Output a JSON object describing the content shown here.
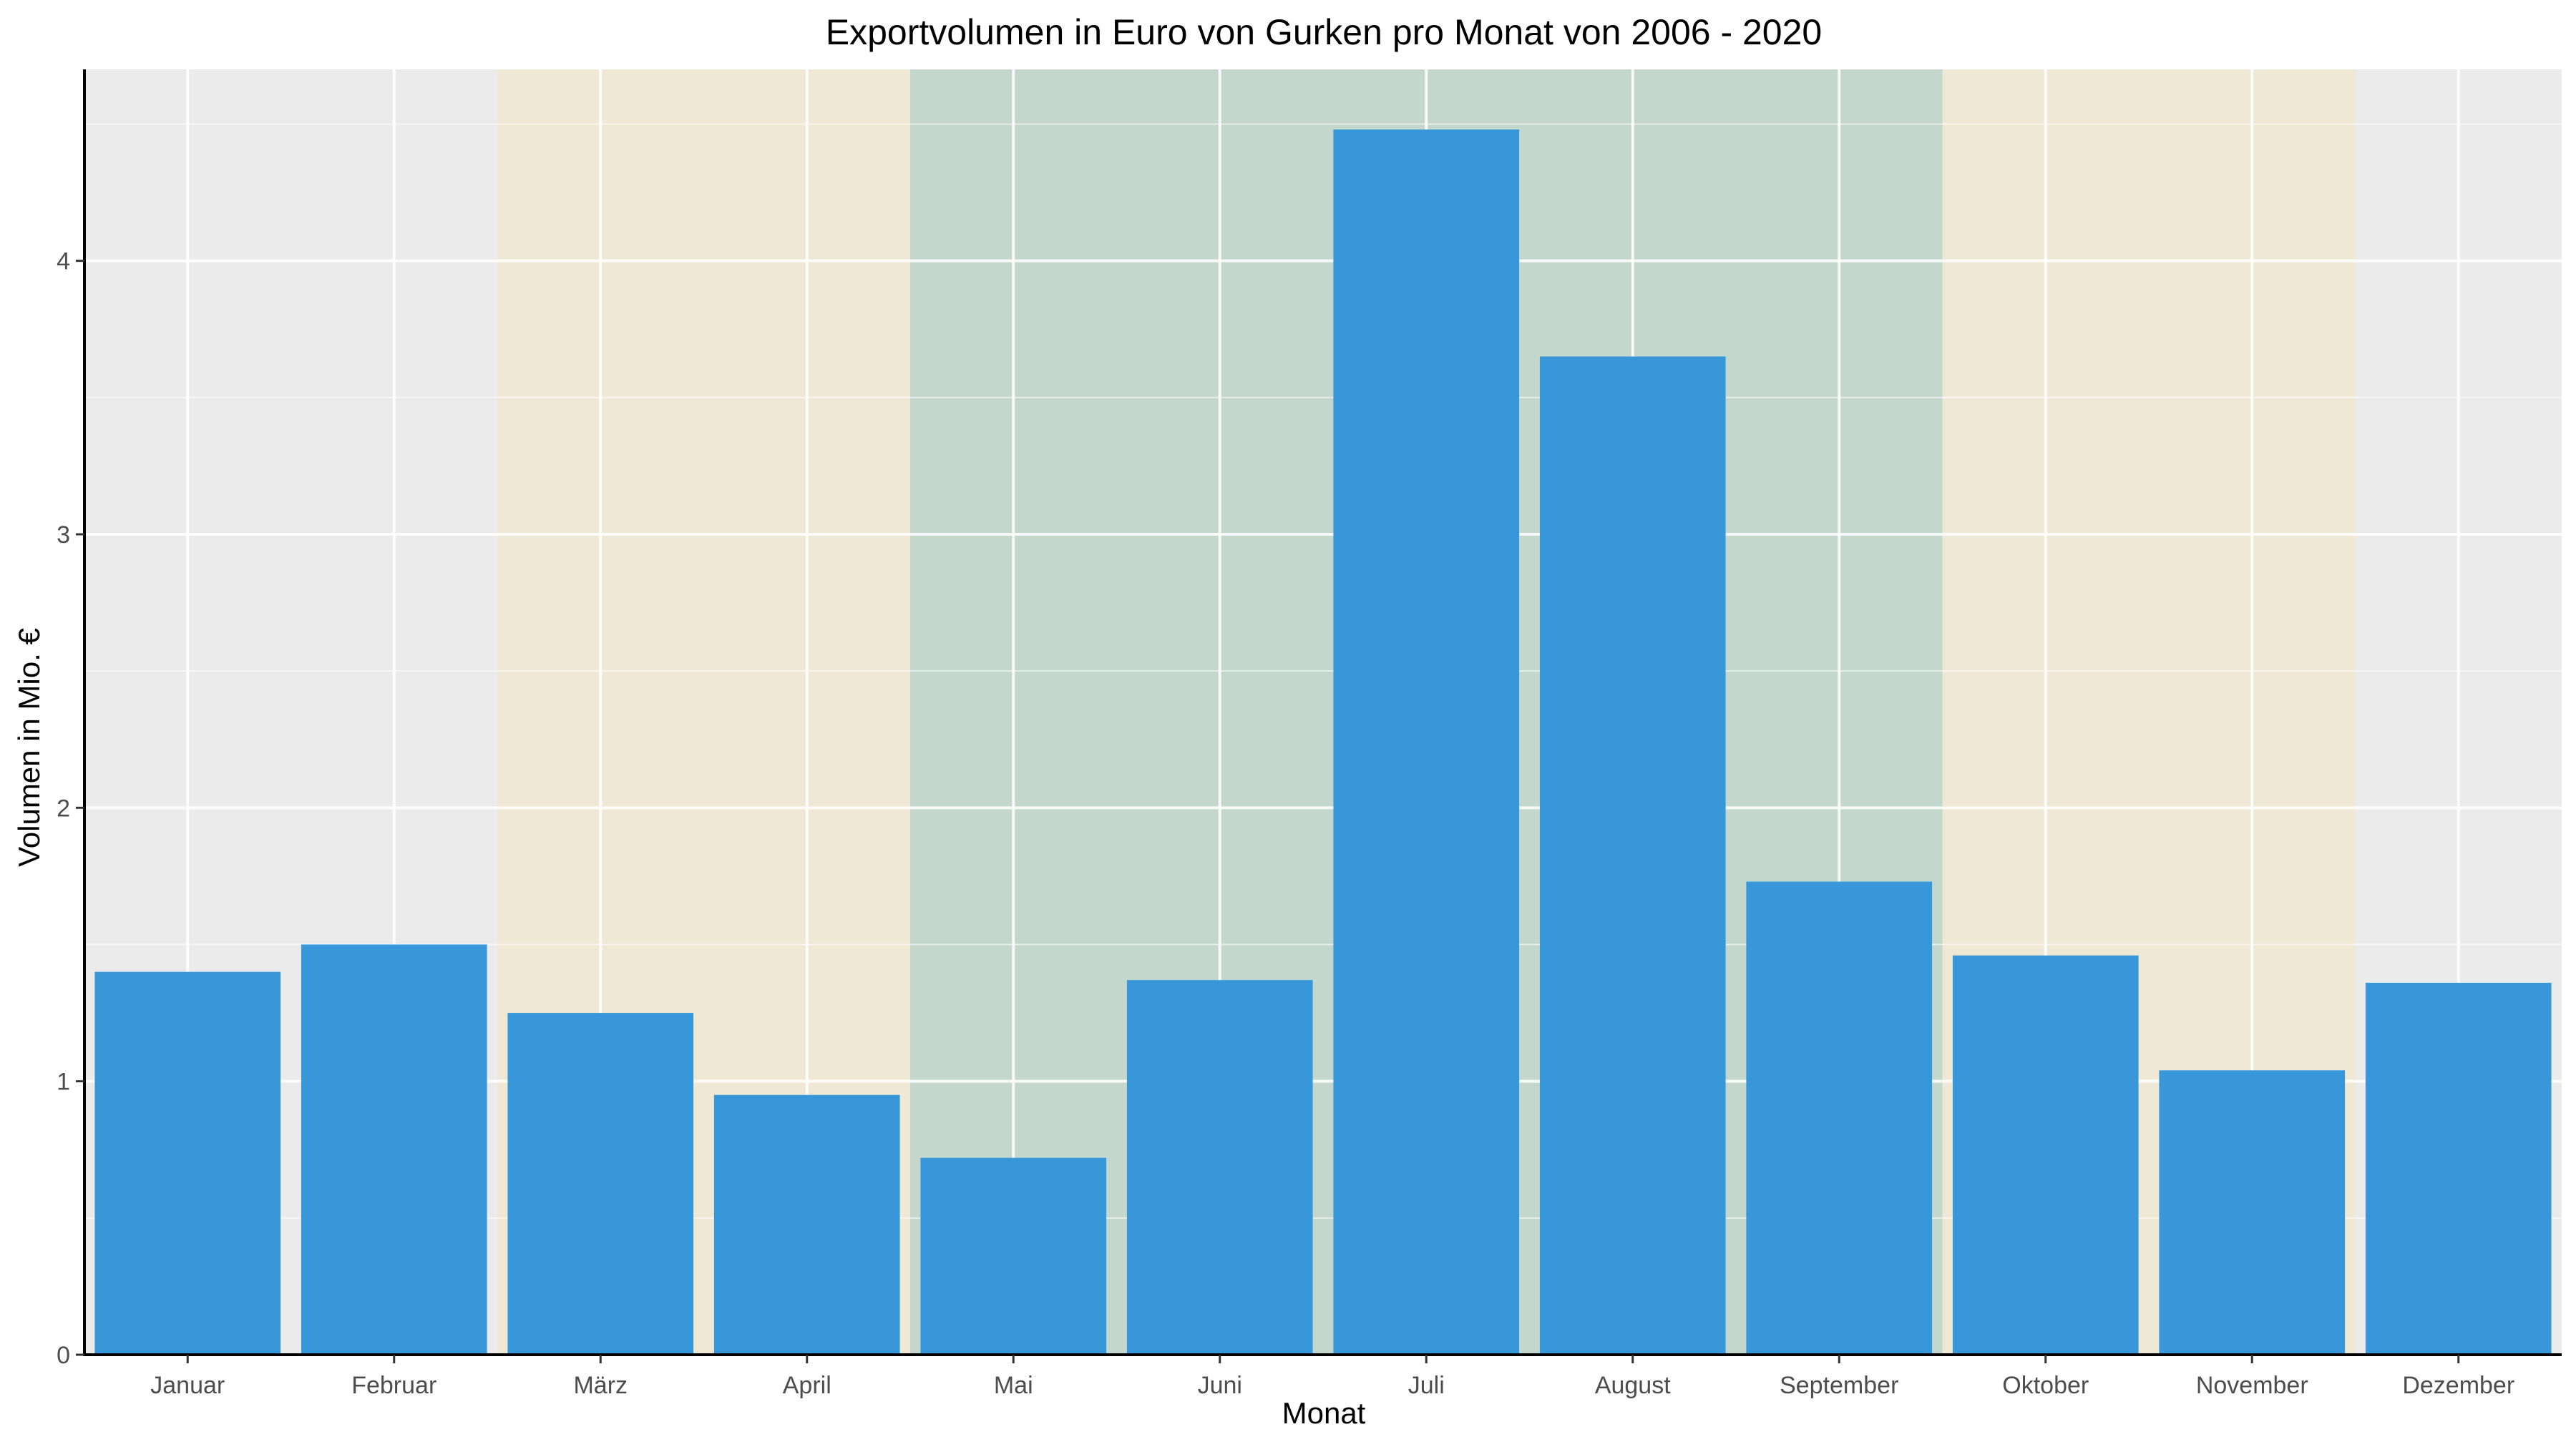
{
  "chart_data": {
    "type": "bar",
    "title": "Exportvolumen in Euro von Gurken pro Monat von 2006 - 2020",
    "xlabel": "Monat",
    "ylabel": "Volumen in Mio. €",
    "categories": [
      "Januar",
      "Februar",
      "März",
      "April",
      "Mai",
      "Juni",
      "Juli",
      "August",
      "September",
      "Oktober",
      "November",
      "Dezember"
    ],
    "values": [
      1.4,
      1.5,
      1.25,
      0.95,
      0.72,
      1.37,
      4.48,
      3.65,
      1.73,
      1.46,
      1.04,
      1.36
    ],
    "ylim": [
      0,
      4.7
    ],
    "yticks": [
      0,
      1,
      2,
      3,
      4
    ],
    "grid": true,
    "legend": "none",
    "bar_color": "#3797D9",
    "panel_background": "#EBEBEB",
    "season_bands": [
      {
        "from": "März",
        "to": "April",
        "color": "#EEE8D5"
      },
      {
        "from": "Mai",
        "to": "September",
        "color": "#C3D7CD"
      },
      {
        "from": "Oktober",
        "to": "November",
        "color": "#EEE8D5"
      }
    ]
  }
}
